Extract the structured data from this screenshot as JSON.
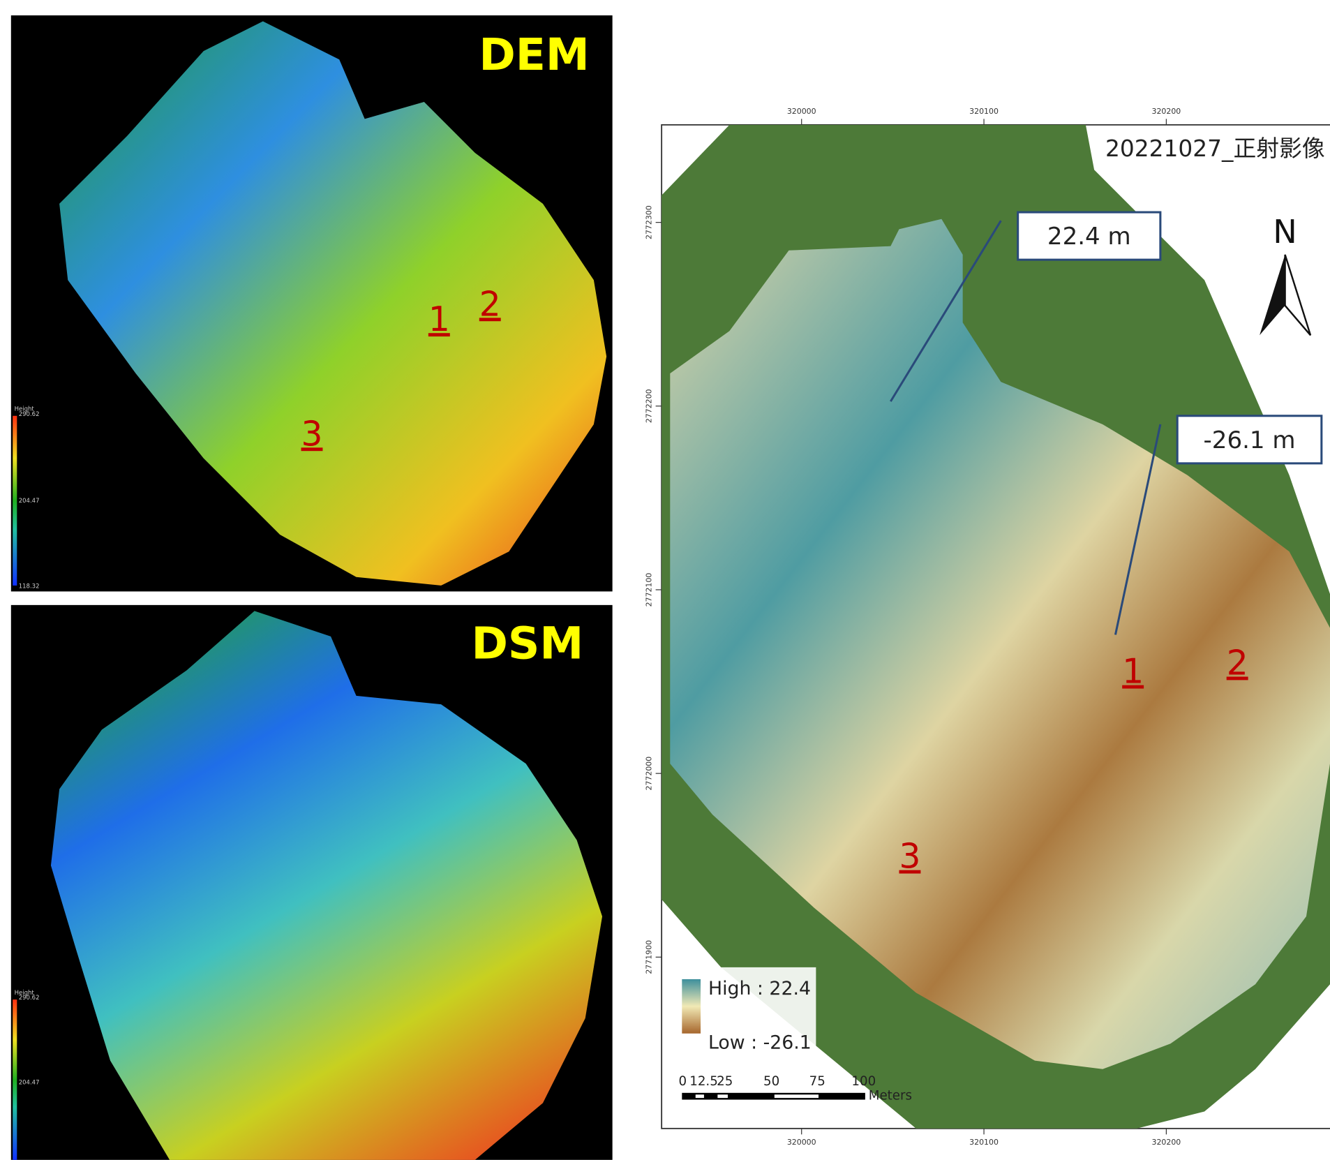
{
  "dem": {
    "label": "DEM",
    "legend": {
      "title": "Height",
      "max": "290.62",
      "mid": "204.47",
      "min": "118.32"
    },
    "sites": [
      "1",
      "2",
      "3"
    ]
  },
  "dsm": {
    "label": "DSM",
    "legend": {
      "title": "Height",
      "max": "290.62",
      "mid": "204.47"
    }
  },
  "map": {
    "title": "20221027_正射影像",
    "north": "N",
    "callouts": [
      "22.4 m",
      "-26.1 m"
    ],
    "legend": {
      "high": "High : 22.4",
      "low": "Low : -26.1"
    },
    "scale_bar": {
      "labels": [
        "0",
        "12.5",
        "25",
        "50",
        "75",
        "100"
      ],
      "unit": "Meters"
    },
    "sites": [
      "1",
      "2",
      "3"
    ],
    "x_ticks": [
      "320000",
      "320100",
      "320200"
    ],
    "y_ticks": [
      "2772300",
      "2772200",
      "2772100",
      "2772000",
      "2771900"
    ]
  }
}
